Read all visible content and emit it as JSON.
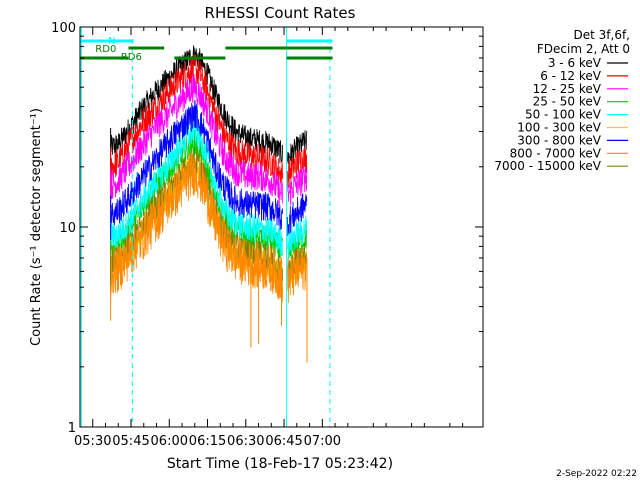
{
  "chart_data": {
    "type": "line",
    "title": "RHESSI Count Rates",
    "xlabel": "Start Time (18-Feb-17 05:23:42)",
    "ylabel": "Count Rate (s⁻¹ detector segment⁻¹)",
    "x_range_min": [
      25,
      183
    ],
    "y_range": [
      1,
      100
    ],
    "y_scale": "log",
    "x_ticks": [
      {
        "min": 30,
        "label": "05:30"
      },
      {
        "min": 45,
        "label": "05:45"
      },
      {
        "min": 60,
        "label": "06:00"
      },
      {
        "min": 75,
        "label": "06:15"
      },
      {
        "min": 90,
        "label": "06:30"
      },
      {
        "min": 105,
        "label": "06:45"
      },
      {
        "min": 120,
        "label": "07:00"
      }
    ],
    "y_ticks": [
      {
        "value": 1,
        "label": "1"
      },
      {
        "value": 10,
        "label": "10"
      },
      {
        "value": 100,
        "label": "100"
      }
    ],
    "legend_header": [
      "Det 3f,6f,",
      "FDecim 2, Att 0"
    ],
    "legend_position": "right",
    "series": [
      {
        "name": "3 - 6 keV",
        "color": "#000000",
        "points": [
          [
            37,
            25
          ],
          [
            40,
            26
          ],
          [
            45,
            32
          ],
          [
            50,
            40
          ],
          [
            55,
            48
          ],
          [
            60,
            56
          ],
          [
            65,
            64
          ],
          [
            68,
            70
          ],
          [
            70,
            73
          ],
          [
            72,
            68
          ],
          [
            75,
            58
          ],
          [
            78,
            46
          ],
          [
            82,
            36
          ],
          [
            86,
            30
          ],
          [
            90,
            28
          ],
          [
            95,
            27
          ],
          [
            100,
            26
          ],
          [
            103,
            24
          ],
          [
            106,
            22
          ],
          [
            109,
            24
          ],
          [
            112,
            26
          ],
          [
            114,
            27
          ]
        ]
      },
      {
        "name": "6 - 12 keV",
        "color": "#ff0000",
        "points": [
          [
            37,
            20
          ],
          [
            40,
            21
          ],
          [
            45,
            27
          ],
          [
            50,
            34
          ],
          [
            55,
            40
          ],
          [
            60,
            48
          ],
          [
            65,
            56
          ],
          [
            68,
            60
          ],
          [
            70,
            62
          ],
          [
            72,
            58
          ],
          [
            75,
            48
          ],
          [
            78,
            37
          ],
          [
            82,
            28
          ],
          [
            86,
            24
          ],
          [
            90,
            23
          ],
          [
            95,
            22
          ],
          [
            100,
            21
          ],
          [
            103,
            19
          ],
          [
            106,
            18
          ],
          [
            109,
            20
          ],
          [
            112,
            22
          ],
          [
            114,
            22
          ]
        ]
      },
      {
        "name": "12 - 25 keV",
        "color": "#ff00ff",
        "points": [
          [
            37,
            16
          ],
          [
            40,
            17
          ],
          [
            45,
            21
          ],
          [
            50,
            26
          ],
          [
            55,
            32
          ],
          [
            60,
            37
          ],
          [
            65,
            44
          ],
          [
            68,
            48
          ],
          [
            70,
            50
          ],
          [
            72,
            46
          ],
          [
            75,
            38
          ],
          [
            78,
            29
          ],
          [
            82,
            22
          ],
          [
            86,
            19
          ],
          [
            90,
            18
          ],
          [
            95,
            18
          ],
          [
            100,
            17
          ],
          [
            103,
            15
          ],
          [
            106,
            14
          ],
          [
            109,
            16
          ],
          [
            112,
            17
          ],
          [
            114,
            18
          ]
        ]
      },
      {
        "name": "25 - 50 keV",
        "color": "#00cc00",
        "points": [
          [
            37,
            8
          ],
          [
            40,
            8.2
          ],
          [
            45,
            10
          ],
          [
            50,
            13
          ],
          [
            55,
            16
          ],
          [
            60,
            19
          ],
          [
            65,
            23
          ],
          [
            68,
            25
          ],
          [
            70,
            26
          ],
          [
            72,
            24
          ],
          [
            75,
            19
          ],
          [
            78,
            14
          ],
          [
            82,
            11
          ],
          [
            86,
            9.5
          ],
          [
            90,
            9
          ],
          [
            95,
            8.8
          ],
          [
            100,
            8.5
          ],
          [
            103,
            7.8
          ],
          [
            106,
            7.2
          ],
          [
            109,
            8
          ],
          [
            112,
            8.6
          ],
          [
            114,
            9
          ]
        ]
      },
      {
        "name": "50 - 100 keV",
        "color": "#00ffff",
        "points": [
          [
            37,
            9
          ],
          [
            40,
            9.2
          ],
          [
            45,
            11
          ],
          [
            50,
            14
          ],
          [
            55,
            17
          ],
          [
            60,
            21
          ],
          [
            65,
            26
          ],
          [
            68,
            29
          ],
          [
            70,
            31
          ],
          [
            72,
            28
          ],
          [
            75,
            22
          ],
          [
            78,
            16
          ],
          [
            82,
            12
          ],
          [
            86,
            10.5
          ],
          [
            90,
            10
          ],
          [
            95,
            9.8
          ],
          [
            100,
            9.5
          ],
          [
            103,
            8.7
          ],
          [
            106,
            8
          ],
          [
            109,
            9
          ],
          [
            112,
            9.5
          ],
          [
            114,
            10
          ]
        ]
      },
      {
        "name": "100 - 300 keV",
        "color": "#ffcc00",
        "points": [
          [
            37,
            6.2
          ],
          [
            40,
            6.4
          ],
          [
            45,
            7.8
          ],
          [
            50,
            9.6
          ],
          [
            55,
            12
          ],
          [
            60,
            14.5
          ],
          [
            65,
            17.5
          ],
          [
            68,
            19
          ],
          [
            70,
            20
          ],
          [
            72,
            18.5
          ],
          [
            75,
            15
          ],
          [
            78,
            11
          ],
          [
            82,
            8.4
          ],
          [
            86,
            7.2
          ],
          [
            90,
            6.8
          ],
          [
            95,
            6.6
          ],
          [
            100,
            6.4
          ],
          [
            103,
            5.9
          ],
          [
            106,
            5.4
          ],
          [
            109,
            6
          ],
          [
            112,
            6.4
          ],
          [
            114,
            6.6
          ]
        ]
      },
      {
        "name": "300 - 800 keV",
        "color": "#0000ff",
        "points": [
          [
            37,
            11.5
          ],
          [
            40,
            12
          ],
          [
            45,
            14.5
          ],
          [
            50,
            18
          ],
          [
            55,
            22
          ],
          [
            60,
            27
          ],
          [
            65,
            32
          ],
          [
            68,
            35
          ],
          [
            70,
            37
          ],
          [
            72,
            34
          ],
          [
            75,
            27
          ],
          [
            78,
            20
          ],
          [
            82,
            15.5
          ],
          [
            86,
            13.5
          ],
          [
            90,
            13
          ],
          [
            95,
            12.8
          ],
          [
            100,
            12.5
          ],
          [
            103,
            11.5
          ],
          [
            106,
            10.5
          ],
          [
            109,
            11.5
          ],
          [
            112,
            12.5
          ],
          [
            114,
            13
          ]
        ]
      },
      {
        "name": "800 - 7000 keV",
        "color": "#ff8800",
        "points": [
          [
            37,
            6
          ],
          [
            40,
            6.1
          ],
          [
            45,
            7.4
          ],
          [
            50,
            9
          ],
          [
            55,
            11
          ],
          [
            60,
            13.5
          ],
          [
            65,
            16
          ],
          [
            68,
            18
          ],
          [
            70,
            19
          ],
          [
            72,
            17.5
          ],
          [
            75,
            14
          ],
          [
            78,
            10.5
          ],
          [
            82,
            8
          ],
          [
            86,
            7
          ],
          [
            90,
            6.6
          ],
          [
            95,
            6.4
          ],
          [
            100,
            6.2
          ],
          [
            103,
            5.6
          ],
          [
            106,
            5.2
          ],
          [
            109,
            5.8
          ],
          [
            112,
            6.2
          ],
          [
            114,
            6.4
          ]
        ]
      },
      {
        "name": "7000 - 15000 keV",
        "color": "#808000",
        "points": [
          [
            37,
            6.8
          ],
          [
            40,
            7
          ],
          [
            45,
            8.5
          ],
          [
            50,
            10.5
          ],
          [
            55,
            13
          ],
          [
            60,
            15.5
          ],
          [
            65,
            18.5
          ],
          [
            68,
            20.5
          ],
          [
            70,
            21.5
          ],
          [
            72,
            20
          ],
          [
            75,
            16
          ],
          [
            78,
            12
          ],
          [
            82,
            9.2
          ],
          [
            86,
            8
          ],
          [
            90,
            7.5
          ],
          [
            95,
            7.3
          ],
          [
            100,
            7
          ],
          [
            103,
            6.4
          ],
          [
            106,
            5.9
          ],
          [
            109,
            6.6
          ],
          [
            112,
            7
          ],
          [
            114,
            7.3
          ]
        ]
      }
    ],
    "annotations": {
      "saa_label": "N",
      "rd_labels": [
        "RD0",
        "RD6"
      ],
      "night_bars": [
        [
          25,
          46
        ],
        [
          106,
          124
        ]
      ],
      "vertical_lines_solid": [
        25.5,
        106
      ],
      "vertical_lines_dashed": [
        45.5,
        123
      ],
      "rd_bars_upper": [
        [
          44,
          58
        ],
        [
          82,
          106
        ],
        [
          106,
          124
        ]
      ],
      "rd_bars_lower": [
        [
          25,
          44
        ],
        [
          62,
          82
        ],
        [
          106,
          124
        ]
      ]
    },
    "grid": false
  },
  "footer": {
    "date_stamp": "2-Sep-2022 02:22"
  },
  "colors": {
    "axis": "#000000",
    "night_line": "#00ffff",
    "rd_bar": "#008000"
  }
}
